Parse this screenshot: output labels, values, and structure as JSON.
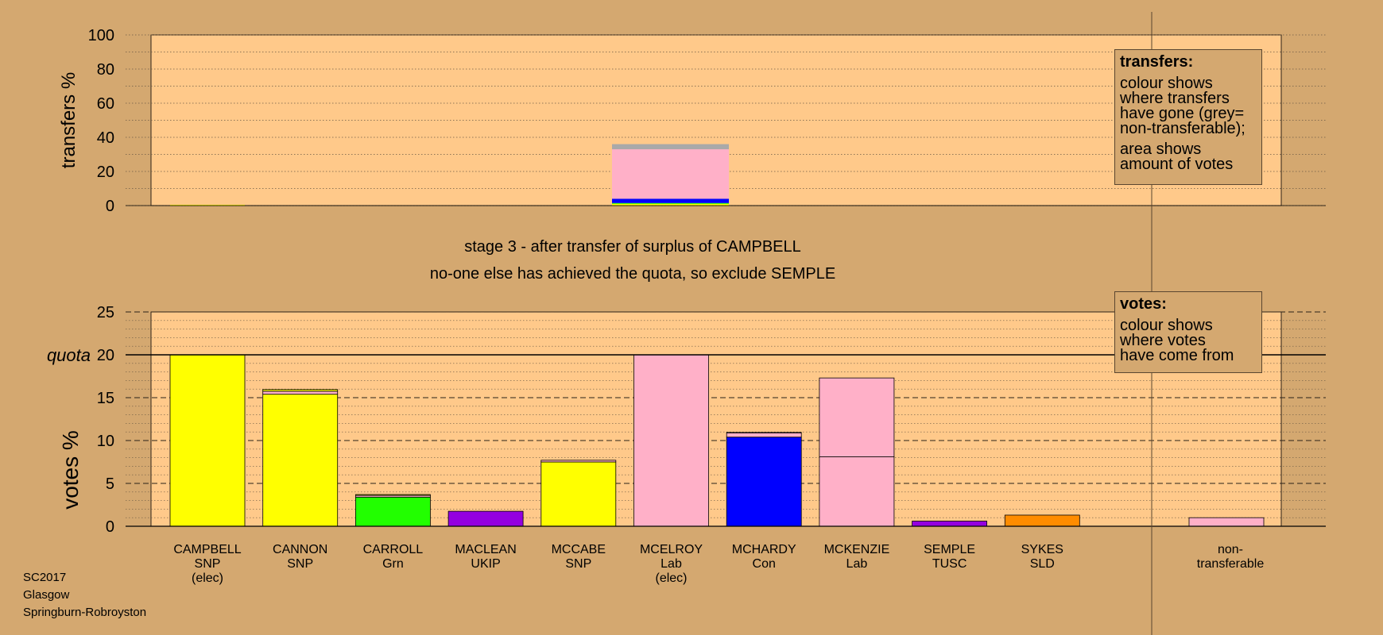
{
  "stage": {
    "line1": "stage 3 - after transfer of surplus of CAMPBELL",
    "line2": "no-one else has achieved the quota, so exclude SEMPLE"
  },
  "footer": {
    "line1": "SC2017",
    "line2": "Glasgow",
    "line3": "Springburn-Robroyston"
  },
  "legend_transfers": {
    "title": "transfers:",
    "p1": [
      "colour shows",
      "where transfers",
      "have gone (grey=",
      "non-transferable);"
    ],
    "p2": [
      "area shows",
      "amount of votes"
    ]
  },
  "legend_votes": {
    "title": "votes:",
    "p1": [
      "colour shows",
      "where votes",
      "have come from"
    ]
  },
  "colors": {
    "SNP": "#ffff00",
    "Grn": "#22ff00",
    "UKIP": "#9400e0",
    "Lab": "#ffb0c8",
    "Con": "#0000ff",
    "TUSC": "#9400e0",
    "SLD": "#ff8c00",
    "nontransferable": "#ffb0c8",
    "grey": "#a9a9a9",
    "panel": "#ffc98a",
    "background": "#d4a870"
  },
  "chart_data": [
    {
      "type": "bar",
      "ylabel": "transfers %",
      "ylim": [
        0,
        100
      ],
      "yticks": [
        0,
        20,
        40,
        60,
        80,
        100
      ],
      "grid": true,
      "transfers": [
        {
          "candidate_index": 0,
          "segments": [
            {
              "party": "SNP",
              "value": 0.5
            }
          ]
        },
        {
          "candidate_index": 5,
          "segments": [
            {
              "party": "SNP",
              "value": 1
            },
            {
              "party": "Grn",
              "value": 0.5
            },
            {
              "party": "Con",
              "value": 2.5
            },
            {
              "party": "Lab",
              "value": 29
            },
            {
              "party": "grey",
              "value": 3
            }
          ]
        }
      ]
    },
    {
      "type": "bar",
      "ylabel": "votes %",
      "quota_label": "quota",
      "quota": 20,
      "ylim": [
        0,
        25
      ],
      "yticks": [
        0,
        5,
        10,
        15,
        20,
        25
      ],
      "grid": true,
      "candidates": [
        {
          "name": "CAMPBELL",
          "party": "SNP",
          "note": "(elec)",
          "segments": [
            {
              "color": "SNP",
              "value": 20
            }
          ]
        },
        {
          "name": "CANNON",
          "party": "SNP",
          "note": "",
          "segments": [
            {
              "color": "SNP",
              "value": 15.4
            },
            {
              "color": "Lab",
              "value": 0.35
            },
            {
              "color": "SNP",
              "value": 0.2
            }
          ]
        },
        {
          "name": "CARROLL",
          "party": "Grn",
          "note": "",
          "segments": [
            {
              "color": "Grn",
              "value": 3.4
            },
            {
              "color": "Lab",
              "value": 0.2
            },
            {
              "color": "SNP",
              "value": 0.1
            }
          ]
        },
        {
          "name": "MACLEAN",
          "party": "UKIP",
          "note": "",
          "segments": [
            {
              "color": "UKIP",
              "value": 1.75
            }
          ]
        },
        {
          "name": "MCCABE",
          "party": "SNP",
          "note": "",
          "segments": [
            {
              "color": "SNP",
              "value": 7.5
            },
            {
              "color": "Lab",
              "value": 0.2
            }
          ]
        },
        {
          "name": "MCELROY",
          "party": "Lab",
          "note": "(elec)",
          "segments": [
            {
              "color": "Lab",
              "value": 20
            }
          ]
        },
        {
          "name": "MCHARDY",
          "party": "Con",
          "note": "",
          "segments": [
            {
              "color": "Con",
              "value": 10.4
            },
            {
              "color": "Lab",
              "value": 0.5
            },
            {
              "color": "SNP",
              "value": 0.05
            }
          ]
        },
        {
          "name": "MCKENZIE",
          "party": "Lab",
          "note": "",
          "segments": [
            {
              "color": "Lab",
              "value": 8.1
            },
            {
              "color": "Lab",
              "value": 9.2
            }
          ]
        },
        {
          "name": "SEMPLE",
          "party": "TUSC",
          "note": "",
          "segments": [
            {
              "color": "TUSC",
              "value": 0.6
            }
          ]
        },
        {
          "name": "SYKES",
          "party": "SLD",
          "note": "",
          "segments": [
            {
              "color": "SLD",
              "value": 1.3
            }
          ]
        }
      ],
      "nontransferable": {
        "label_line1": "non-",
        "label_line2": "transferable",
        "value": 1.0
      }
    }
  ]
}
